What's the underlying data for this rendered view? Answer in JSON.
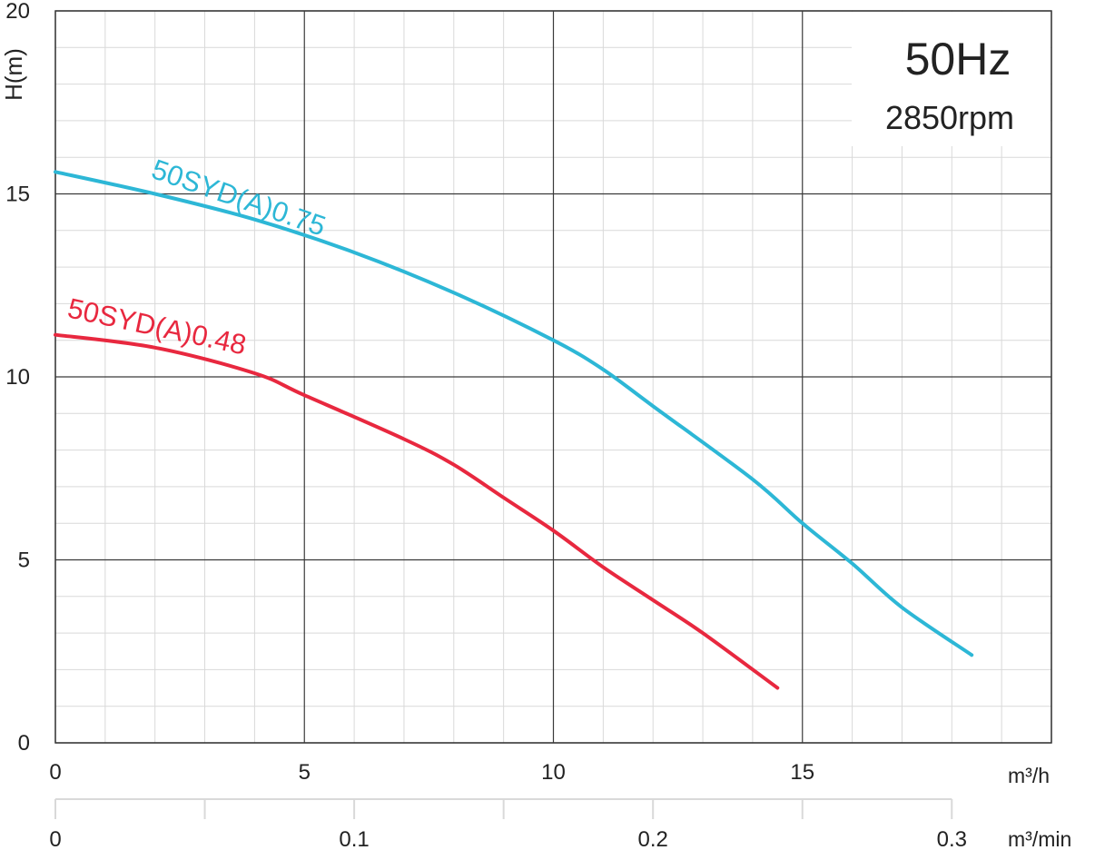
{
  "chart_data": {
    "type": "line",
    "title": "50Hz",
    "subtitle": "2850rpm",
    "xlabel": "m³/h",
    "xlabel_secondary": "m³/min",
    "ylabel": "H(m)",
    "xlim": [
      0,
      20
    ],
    "ylim": [
      0,
      20
    ],
    "x_ticks": [
      "0",
      "5",
      "10",
      "15"
    ],
    "x_tick_values": [
      0,
      5,
      10,
      15
    ],
    "x2_ticks": [
      "0",
      "0.1",
      "0.2",
      "0.3"
    ],
    "x2_tick_values": [
      0,
      0.1,
      0.2,
      0.3
    ],
    "x2_minor_values": [
      0,
      0.05,
      0.1,
      0.15,
      0.2,
      0.25,
      0.3
    ],
    "y_ticks": [
      "0",
      "5",
      "10",
      "15",
      "20"
    ],
    "y_tick_values": [
      0,
      5,
      10,
      15,
      20
    ],
    "grid": true,
    "legend": "inline labels",
    "series": [
      {
        "name": "50SYD(A)0.75",
        "color": "#2db7d6",
        "x": [
          0,
          2,
          4,
          6,
          8,
          10,
          11,
          12,
          14,
          15,
          16,
          17,
          18.4
        ],
        "y": [
          15.6,
          15.0,
          14.3,
          13.4,
          12.3,
          11.0,
          10.2,
          9.2,
          7.2,
          6.0,
          4.9,
          3.7,
          2.4
        ]
      },
      {
        "name": "50SYD(A)0.48",
        "color": "#e8283f",
        "x": [
          0,
          2,
          4,
          5,
          7,
          8,
          9,
          10,
          11,
          12,
          13,
          14.5
        ],
        "y": [
          11.15,
          10.8,
          10.1,
          9.5,
          8.3,
          7.6,
          6.7,
          5.8,
          4.8,
          3.9,
          3.0,
          1.5
        ]
      }
    ]
  }
}
